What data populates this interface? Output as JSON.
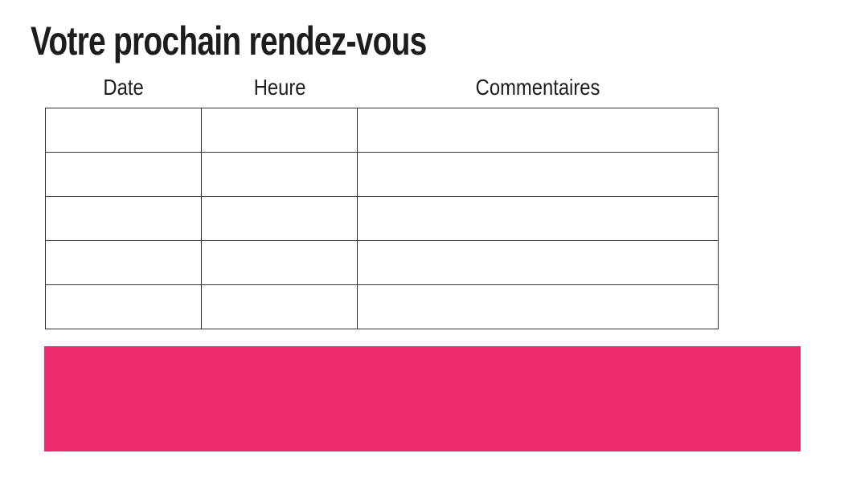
{
  "page": {
    "title": "Votre prochain rendez-vous",
    "background": "#FFFFFF"
  },
  "table": {
    "columns": [
      {
        "label": "Date"
      },
      {
        "label": "Heure"
      },
      {
        "label": "Commentaires"
      }
    ],
    "rows": [
      [
        "",
        "",
        ""
      ],
      [
        "",
        "",
        ""
      ],
      [
        "",
        "",
        ""
      ],
      [
        "",
        "",
        ""
      ],
      [
        "",
        "",
        ""
      ]
    ]
  },
  "colors": {
    "accent": "#ED2A6A",
    "border": "#333333",
    "text": "#1D1D1B"
  }
}
